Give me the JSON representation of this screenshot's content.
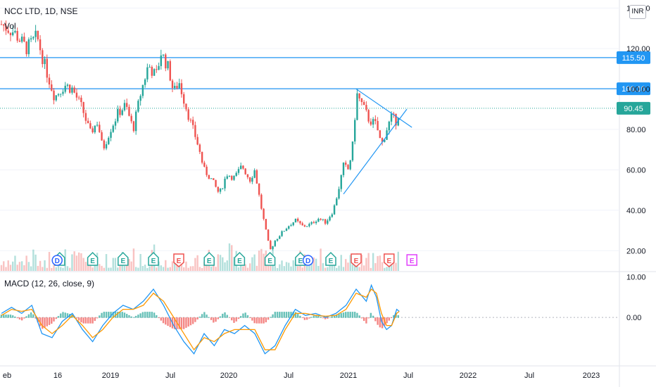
{
  "header": {
    "title": "NCC LTD, 1D, NSE",
    "volume_label": "Vol",
    "currency_label": "INR"
  },
  "macd": {
    "label": "MACD (12, 26, close, 9)"
  },
  "colors": {
    "up": "#26a69a",
    "down": "#ef5350",
    "level": "#2196f3",
    "macd": "#2196f3",
    "signal": "#ff9800",
    "last": "#26a69a",
    "earnings_up": "#26a69a",
    "earnings_down": "#ef5350",
    "earnings_future": "#e040fb"
  },
  "chart_data": {
    "type": "candlestick",
    "title": "NCC LTD, 1D, NSE",
    "x_axis_labels": [
      "eb",
      "16",
      "2019",
      "Jul",
      "2020",
      "Jul",
      "2021",
      "Jul",
      "2022",
      "Jul",
      "2023"
    ],
    "y_axis": {
      "ticks": [
        20,
        40,
        60,
        80,
        100,
        120,
        140
      ],
      "tick_labels": [
        "20.00",
        "40.00",
        "60.00",
        "80.00",
        "100.00",
        "120.00",
        "140.00"
      ],
      "range": [
        10,
        144
      ]
    },
    "horizontal_levels": [
      {
        "value": 115.5,
        "label": "115.50"
      },
      {
        "value": 100.1,
        "label": "100.10"
      }
    ],
    "last_price": {
      "value": 90.45,
      "label": "90.45"
    },
    "price_path": [
      [
        0,
        132
      ],
      [
        5,
        128
      ],
      [
        10,
        120
      ],
      [
        14,
        126
      ],
      [
        17,
        112
      ],
      [
        21,
        96
      ],
      [
        25,
        102
      ],
      [
        28,
        100
      ],
      [
        32,
        90
      ],
      [
        35,
        78
      ],
      [
        38,
        84
      ],
      [
        40,
        70
      ],
      [
        43,
        80
      ],
      [
        46,
        88
      ],
      [
        49,
        92
      ],
      [
        52,
        80
      ],
      [
        55,
        98
      ],
      [
        58,
        112
      ],
      [
        61,
        106
      ],
      [
        63,
        118
      ],
      [
        66,
        110
      ],
      [
        68,
        98
      ],
      [
        70,
        104
      ],
      [
        72,
        95
      ],
      [
        75,
        82
      ],
      [
        77,
        75
      ],
      [
        80,
        60
      ],
      [
        83,
        55
      ],
      [
        86,
        48
      ],
      [
        89,
        58
      ],
      [
        92,
        56
      ],
      [
        95,
        62
      ],
      [
        98,
        55
      ],
      [
        100,
        60
      ],
      [
        102,
        45
      ],
      [
        104,
        32
      ],
      [
        106,
        20
      ],
      [
        108,
        25
      ],
      [
        110,
        28
      ],
      [
        113,
        32
      ],
      [
        116,
        35
      ],
      [
        119,
        32
      ],
      [
        122,
        33
      ],
      [
        125,
        36
      ],
      [
        128,
        34
      ],
      [
        131,
        40
      ],
      [
        133,
        50
      ],
      [
        135,
        62
      ],
      [
        137,
        60
      ],
      [
        139,
        75
      ],
      [
        140,
        98
      ],
      [
        142,
        93
      ],
      [
        145,
        85
      ],
      [
        148,
        82
      ],
      [
        150,
        72
      ],
      [
        152,
        80
      ],
      [
        154,
        86
      ],
      [
        156,
        84
      ],
      [
        157,
        90.45
      ]
    ],
    "trend_lines": [
      {
        "from": [
          140,
          100
        ],
        "to": [
          162,
          81
        ]
      },
      {
        "from": [
          135,
          48
        ],
        "to": [
          160,
          90
        ]
      }
    ],
    "volume": {
      "axis_ticks": [],
      "note": "volume histogram at bottom of price pane"
    },
    "macd": {
      "label": "MACD (12, 26, close, 9)",
      "y_ticks": [
        10,
        0
      ],
      "y_tick_labels": [
        "10.00",
        "0.00"
      ],
      "range": [
        -12,
        11
      ],
      "macd_path": [
        [
          0,
          1
        ],
        [
          4,
          2.5
        ],
        [
          8,
          1
        ],
        [
          12,
          3
        ],
        [
          16,
          -4
        ],
        [
          20,
          -5
        ],
        [
          24,
          -1
        ],
        [
          28,
          1
        ],
        [
          32,
          -3
        ],
        [
          36,
          -6
        ],
        [
          40,
          -2
        ],
        [
          44,
          1
        ],
        [
          48,
          3
        ],
        [
          52,
          2
        ],
        [
          56,
          4
        ],
        [
          60,
          7
        ],
        [
          64,
          3
        ],
        [
          68,
          -2
        ],
        [
          72,
          -6
        ],
        [
          76,
          -9
        ],
        [
          80,
          -4
        ],
        [
          84,
          -7
        ],
        [
          88,
          -3
        ],
        [
          92,
          -4
        ],
        [
          96,
          -2
        ],
        [
          100,
          -4
        ],
        [
          104,
          -9
        ],
        [
          108,
          -7
        ],
        [
          112,
          -2
        ],
        [
          116,
          2
        ],
        [
          120,
          0.5
        ],
        [
          124,
          1
        ],
        [
          128,
          0
        ],
        [
          132,
          1
        ],
        [
          136,
          3
        ],
        [
          140,
          7
        ],
        [
          144,
          4
        ],
        [
          146,
          8
        ],
        [
          148,
          5
        ],
        [
          150,
          -1
        ],
        [
          152,
          -3
        ],
        [
          154,
          -2
        ],
        [
          156,
          2
        ],
        [
          157,
          1.5
        ]
      ],
      "signal_path": [
        [
          0,
          0.5
        ],
        [
          4,
          2
        ],
        [
          8,
          1.5
        ],
        [
          12,
          2
        ],
        [
          16,
          -2
        ],
        [
          20,
          -4
        ],
        [
          24,
          -2
        ],
        [
          28,
          0.5
        ],
        [
          32,
          -2
        ],
        [
          36,
          -5
        ],
        [
          40,
          -3
        ],
        [
          44,
          0
        ],
        [
          48,
          2
        ],
        [
          52,
          2
        ],
        [
          56,
          3
        ],
        [
          60,
          6
        ],
        [
          64,
          4
        ],
        [
          68,
          0
        ],
        [
          72,
          -4
        ],
        [
          76,
          -8
        ],
        [
          80,
          -5
        ],
        [
          84,
          -6
        ],
        [
          88,
          -4
        ],
        [
          92,
          -3
        ],
        [
          96,
          -3
        ],
        [
          100,
          -3
        ],
        [
          104,
          -8
        ],
        [
          108,
          -8
        ],
        [
          112,
          -3
        ],
        [
          116,
          1
        ],
        [
          120,
          1
        ],
        [
          124,
          0.5
        ],
        [
          128,
          0.3
        ],
        [
          132,
          0.5
        ],
        [
          136,
          2
        ],
        [
          140,
          6
        ],
        [
          144,
          5
        ],
        [
          146,
          7
        ],
        [
          148,
          6
        ],
        [
          150,
          1
        ],
        [
          152,
          -2
        ],
        [
          154,
          -2
        ],
        [
          156,
          1
        ],
        [
          157,
          1.5
        ]
      ]
    },
    "earnings_markers": [
      {
        "t": 23,
        "kind": "up"
      },
      {
        "t": 36,
        "kind": "up"
      },
      {
        "t": 48,
        "kind": "up"
      },
      {
        "t": 60,
        "kind": "up"
      },
      {
        "t": 70,
        "kind": "down"
      },
      {
        "t": 82,
        "kind": "up"
      },
      {
        "t": 94,
        "kind": "up"
      },
      {
        "t": 106,
        "kind": "up"
      },
      {
        "t": 118,
        "kind": "up"
      },
      {
        "t": 130,
        "kind": "up"
      },
      {
        "t": 140,
        "kind": "down"
      },
      {
        "t": 153,
        "kind": "down"
      },
      {
        "t": 162,
        "kind": "future"
      }
    ],
    "dividend_markers": [
      {
        "t": 22
      },
      {
        "t": 121
      }
    ]
  }
}
